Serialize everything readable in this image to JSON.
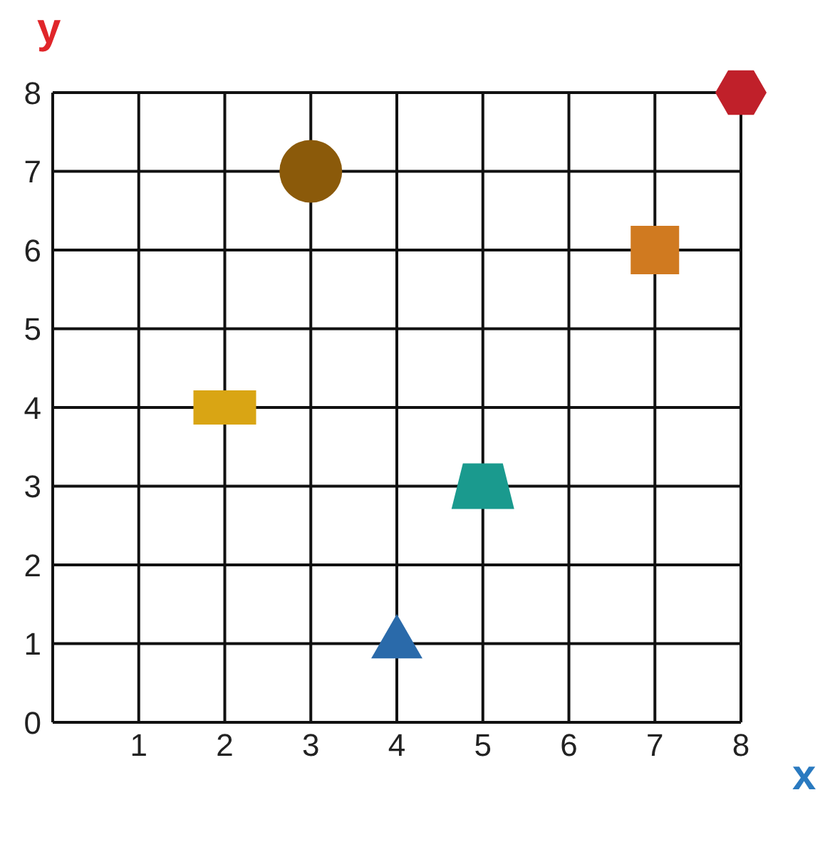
{
  "chart_data": {
    "type": "scatter",
    "xlabel": "x",
    "ylabel": "y",
    "xlim": [
      0,
      8
    ],
    "ylim": [
      0,
      8
    ],
    "xticks": [
      1,
      2,
      3,
      4,
      5,
      6,
      7,
      8
    ],
    "yticks": [
      0,
      1,
      2,
      3,
      4,
      5,
      6,
      7,
      8
    ],
    "grid": true,
    "series": [
      {
        "color": "#8b5a0a",
        "marker": "circle",
        "x": [
          3
        ],
        "values": [
          7
        ]
      },
      {
        "color": "#d9a514",
        "x": [
          2
        ],
        "values": [
          4
        ]
      },
      {
        "color": "#d07a20",
        "marker": "square",
        "x": [
          7
        ],
        "values": [
          6
        ]
      },
      {
        "color": "#c0202a",
        "x": [
          8
        ],
        "values": [
          8
        ]
      },
      {
        "color": "#1a9a8e",
        "x": [
          5
        ],
        "values": [
          3
        ]
      },
      {
        "color": "#2a6aaa",
        "marker": "triangle",
        "x": [
          4
        ],
        "values": [
          1
        ]
      }
    ]
  }
}
